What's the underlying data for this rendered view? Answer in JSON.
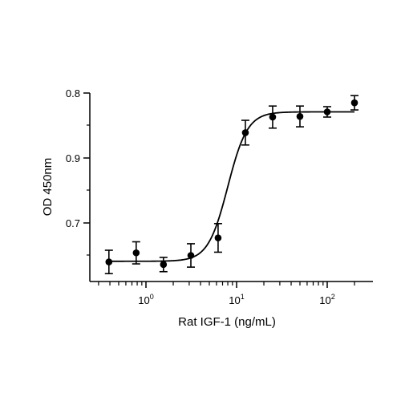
{
  "chart_data": {
    "type": "scatter",
    "xlabel": "Rat IGF-1 (ng/mL)",
    "ylabel": "OD 450nm",
    "x_scale": "log",
    "xlim": [
      0.3,
      250
    ],
    "x_major_ticks": [
      1,
      10,
      100
    ],
    "x_tick_labels": [
      {
        "value": 1,
        "base": "10",
        "exp": "0"
      },
      {
        "value": 10,
        "base": "10",
        "exp": "1"
      },
      {
        "value": 100,
        "base": "10",
        "exp": "2"
      }
    ],
    "y_tick_labels": [
      "0.8",
      "0.9",
      "0.7"
    ],
    "grid": false,
    "legend": "none",
    "points": [
      {
        "x": 0.39,
        "y": 0.64,
        "err": 0.018
      },
      {
        "x": 0.78,
        "y": 0.654,
        "err": 0.017
      },
      {
        "x": 1.56,
        "y": 0.636,
        "err": 0.011
      },
      {
        "x": 3.13,
        "y": 0.65,
        "err": 0.018
      },
      {
        "x": 6.25,
        "y": 0.677,
        "err": 0.022
      },
      {
        "x": 12.5,
        "y": 0.839,
        "err": 0.019
      },
      {
        "x": 25,
        "y": 0.863,
        "err": 0.017
      },
      {
        "x": 50,
        "y": 0.864,
        "err": 0.016
      },
      {
        "x": 100,
        "y": 0.871,
        "err": 0.008
      },
      {
        "x": 200,
        "y": 0.885,
        "err": 0.011
      }
    ],
    "fit": {
      "bottom": 0.641,
      "top": 0.871,
      "ec50": 8.0,
      "hill": 4.0
    },
    "colors": {
      "points": "#000000",
      "line": "#000000",
      "axes": "#000000"
    }
  }
}
